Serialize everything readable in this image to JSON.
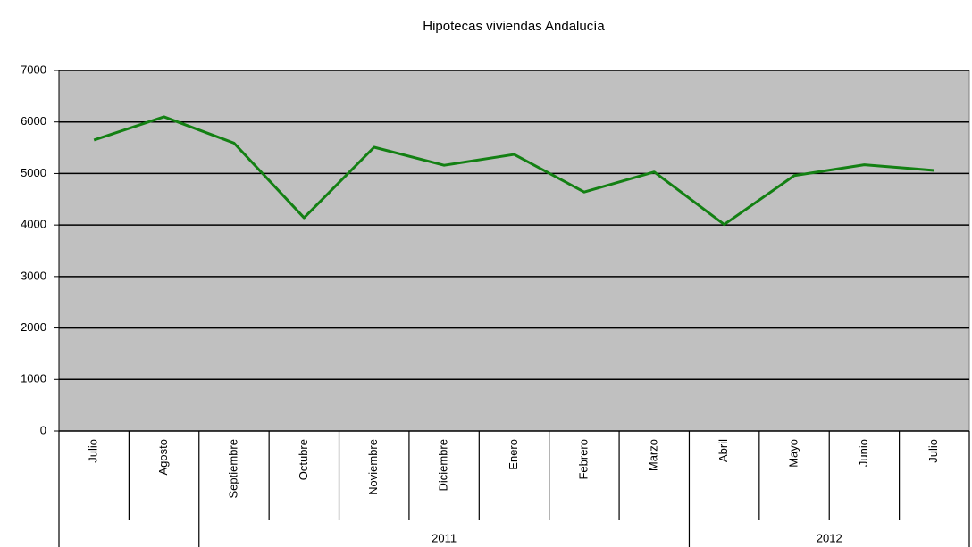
{
  "chart_data": {
    "type": "line",
    "title": "Hipotecas viviendas Andalucía",
    "categories": [
      "Julio",
      "Agosto",
      "Septiembre",
      "Octubre",
      "Noviembre",
      "Diciembre",
      "Enero",
      "Febrero",
      "Marzo",
      "Abril",
      "Mayo",
      "Junio",
      "Julio"
    ],
    "groups": [
      {
        "label": null,
        "span": 2
      },
      {
        "label": "2011",
        "span": 7
      },
      {
        "label": "2012",
        "span": 4
      }
    ],
    "series": [
      {
        "name": "Hipotecas viviendas Andalucía",
        "color": "#138013",
        "values": [
          5650,
          6100,
          5590,
          4140,
          5510,
          5160,
          5370,
          4640,
          5030,
          4010,
          4960,
          5170,
          5060
        ]
      }
    ],
    "ylim": [
      0,
      7000
    ],
    "yticks": [
      0,
      1000,
      2000,
      3000,
      4000,
      5000,
      6000,
      7000
    ],
    "grid": true,
    "plot_background": "#c0c0c0"
  }
}
